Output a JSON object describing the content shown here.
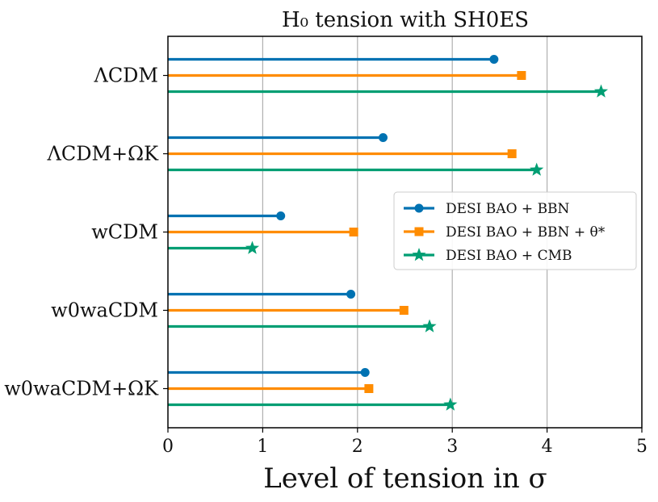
{
  "chart_data": {
    "type": "bar",
    "orientation": "horizontal",
    "title": "H₀ tension with SH0ES",
    "xlabel": "Level of tension in σ",
    "ylabel": "",
    "xlim": [
      0,
      5
    ],
    "xticks": [
      "0",
      "1",
      "2",
      "3",
      "4",
      "5"
    ],
    "grid": "vertical",
    "legend_position": "center-right",
    "categories": [
      "ΛCDM",
      "ΛCDM+ΩK",
      "wCDM",
      "w0waCDM",
      "w0waCDM+ΩK"
    ],
    "series": [
      {
        "name": "DESI BAO + BBN",
        "color": "#0072b2",
        "marker": "circle",
        "values": [
          3.44,
          2.27,
          1.19,
          1.93,
          2.08
        ]
      },
      {
        "name": "DESI BAO + BBN + θ*",
        "color": "#ff8c00",
        "marker": "square",
        "values": [
          3.73,
          3.63,
          1.96,
          2.49,
          2.12
        ]
      },
      {
        "name": "DESI BAO + CMB",
        "color": "#009e73",
        "marker": "star",
        "values": [
          4.57,
          3.89,
          0.89,
          2.76,
          2.98
        ]
      }
    ]
  }
}
